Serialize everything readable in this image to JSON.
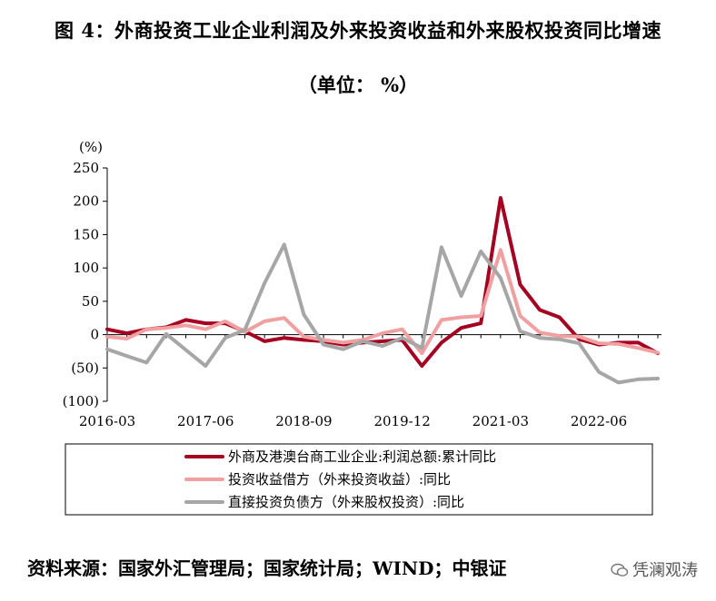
{
  "figure": {
    "title": "图 4：外商投资工业企业利润及外来投资收益和外来股权投资同比增速",
    "subtitle": "（单位：   %）",
    "source": "资料来源：国家外汇管理局；国家统计局；WIND；中银证",
    "watermark": "凭澜观涛",
    "colors": {
      "series1": "#A50021",
      "series2": "#F0A0A0",
      "series3": "#A6A6A6"
    }
  },
  "chart_data": {
    "type": "line",
    "ylabel": "(%)",
    "ylim": [
      -100,
      250
    ],
    "yticks": [
      250,
      200,
      150,
      100,
      50,
      0,
      -50,
      -100
    ],
    "ytick_labels": [
      "250",
      "200",
      "150",
      "100",
      "50",
      "0",
      "(50)",
      "(100)"
    ],
    "xlabels": [
      "2016-03",
      "2017-06",
      "2018-09",
      "2019-12",
      "2021-03",
      "2022-06"
    ],
    "xlabel_quarter_index": [
      0,
      5,
      10,
      15,
      20,
      25
    ],
    "grid": false,
    "legend_position": "bottom",
    "x_quarters": [
      "2016Q1",
      "2016Q2",
      "2016Q3",
      "2016Q4",
      "2017Q1",
      "2017Q2",
      "2017Q3",
      "2017Q4",
      "2018Q1",
      "2018Q2",
      "2018Q3",
      "2018Q4",
      "2019Q1",
      "2019Q2",
      "2019Q3",
      "2019Q4",
      "2020Q1",
      "2020Q2",
      "2020Q3",
      "2020Q4",
      "2021Q1",
      "2021Q2",
      "2021Q3",
      "2021Q4",
      "2022Q1",
      "2022Q2",
      "2022Q3",
      "2022Q4",
      "2023Q1"
    ],
    "series": [
      {
        "name": "外商及港澳台商工业企业:利润总额:累计同比",
        "color": "#A50021",
        "values": [
          8,
          2,
          8,
          11,
          22,
          17,
          17,
          5,
          -10,
          -5,
          -8,
          -10,
          -15,
          -12,
          -10,
          -8,
          -47,
          -12,
          10,
          17,
          205,
          75,
          37,
          26,
          -7,
          -15,
          -12,
          -12,
          -28
        ]
      },
      {
        "name": "投资收益借方（外来投资收益）:同比",
        "color": "#F0A0A0",
        "values": [
          -3,
          -6,
          8,
          10,
          14,
          8,
          20,
          4,
          20,
          25,
          -3,
          -8,
          -12,
          -8,
          2,
          8,
          -28,
          22,
          26,
          28,
          127,
          28,
          3,
          -2,
          -3,
          -13,
          -14,
          -20,
          -27
        ]
      },
      {
        "name": "直接投资负债方（外来股权投资）:同比",
        "color": "#A6A6A6",
        "values": [
          -22,
          -32,
          -42,
          1,
          -23,
          -47,
          -5,
          7,
          77,
          135,
          30,
          -15,
          -22,
          -10,
          -17,
          -5,
          -20,
          131,
          58,
          125,
          85,
          5,
          -5,
          -7,
          -13,
          -56,
          -72,
          -67,
          -66
        ]
      }
    ]
  }
}
